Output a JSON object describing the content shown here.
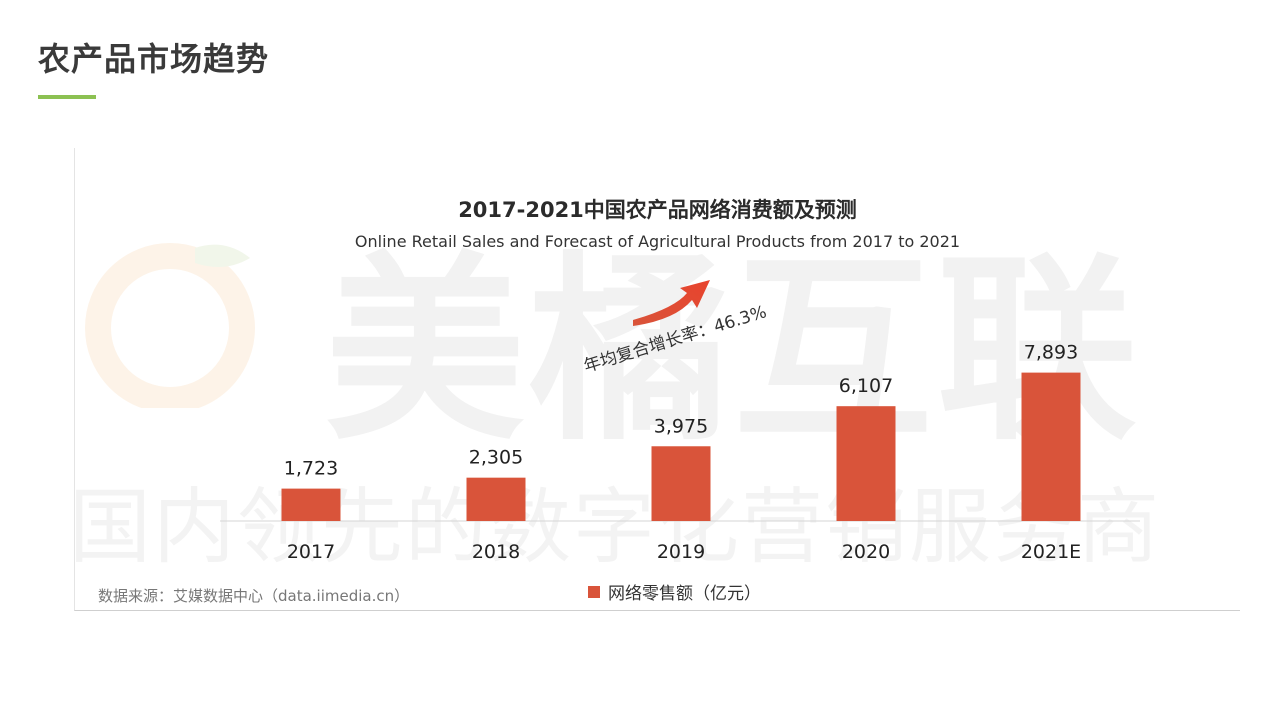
{
  "page": {
    "title": "农产品市场趋势",
    "accent_color": "#8cc152"
  },
  "watermark": {
    "brand": "美橘互联",
    "slogan": "国内领先的数字化营销服务商"
  },
  "source": "数据来源：艾媒数据中心（data.iimedia.cn）",
  "cagr_annotation": "年均复合增长率：46.3%",
  "chart_data": {
    "type": "bar",
    "title": "2017-2021中国农产品网络消费额及预测",
    "subtitle": "Online Retail Sales and Forecast of Agricultural Products from 2017 to 2021",
    "categories": [
      "2017",
      "2018",
      "2019",
      "2020",
      "2021E"
    ],
    "series": [
      {
        "name": "网络零售额（亿元）",
        "values": [
          1723,
          2305,
          3975,
          6107,
          7893
        ],
        "color": "#d9543a"
      }
    ],
    "value_labels": [
      "1,723",
      "2,305",
      "3,975",
      "6,107",
      "7,893"
    ],
    "xlabel": "",
    "ylabel": "",
    "ylim": [
      0,
      10000
    ],
    "grid": false,
    "legend_position": "bottom"
  }
}
